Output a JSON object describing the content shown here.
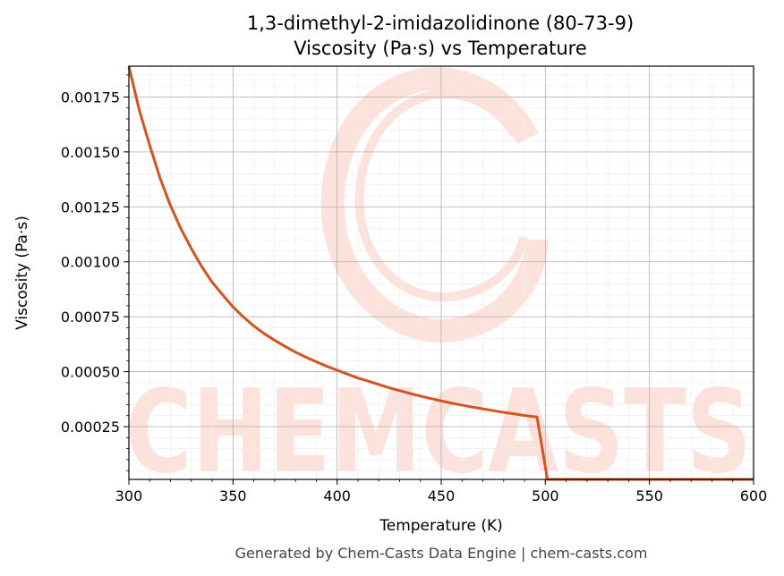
{
  "chart_data": {
    "type": "line",
    "title_line1": "1,3-dimethyl-2-imidazolidinone (80-73-9)",
    "title_line2": "Viscosity (Pa·s) vs Temperature",
    "xlabel": "Temperature (K)",
    "ylabel": "Viscosity (Pa·s)",
    "xlim": [
      300,
      600
    ],
    "ylim": [
      1e-05,
      0.00189
    ],
    "x_ticks": [
      300,
      350,
      400,
      450,
      500,
      550,
      600
    ],
    "x_tick_labels": [
      "300",
      "350",
      "400",
      "450",
      "500",
      "550",
      "600"
    ],
    "y_ticks": [
      0.00025,
      0.0005,
      0.00075,
      0.001,
      0.00125,
      0.0015,
      0.00175
    ],
    "y_tick_labels": [
      "0.00025",
      "0.00050",
      "0.00075",
      "0.00100",
      "0.00125",
      "0.00150",
      "0.00175"
    ],
    "grid": true,
    "series": [
      {
        "color": "#d4531f",
        "x": [
          300,
          305,
          310,
          315,
          320,
          325,
          330,
          335,
          340,
          345,
          350,
          355,
          360,
          365,
          370,
          375,
          380,
          385,
          390,
          395,
          400,
          405,
          410,
          415,
          420,
          425,
          430,
          435,
          440,
          445,
          450,
          455,
          460,
          465,
          470,
          475,
          480,
          485,
          490,
          496,
          501,
          505,
          510,
          520,
          530,
          540,
          550,
          560,
          570,
          580,
          590,
          600
        ],
        "y": [
          0.00189,
          0.00169,
          0.00153,
          0.00138,
          0.001255,
          0.00115,
          0.00106,
          0.000978,
          0.000907,
          0.00085,
          0.000795,
          0.000749,
          0.000708,
          0.000673,
          0.000643,
          0.000615,
          0.000589,
          0.000566,
          0.000545,
          0.000525,
          0.000507,
          0.000489,
          0.000471,
          0.000457,
          0.000442,
          0.000427,
          0.000414,
          0.000401,
          0.000389,
          0.000378,
          0.000367,
          0.000357,
          0.000348,
          0.000339,
          0.000331,
          0.000323,
          0.000315,
          0.000308,
          0.000301,
          0.000294,
          1e-05,
          1e-05,
          1e-05,
          1e-05,
          1e-05,
          1e-05,
          1e-05,
          1e-05,
          1e-05,
          1e-05,
          1e-05,
          1e-05
        ]
      }
    ]
  },
  "watermark": {
    "text": "CHEMCASTS",
    "color": "#fde2dc"
  },
  "footer": "Generated by Chem-Casts Data Engine | chem-casts.com"
}
